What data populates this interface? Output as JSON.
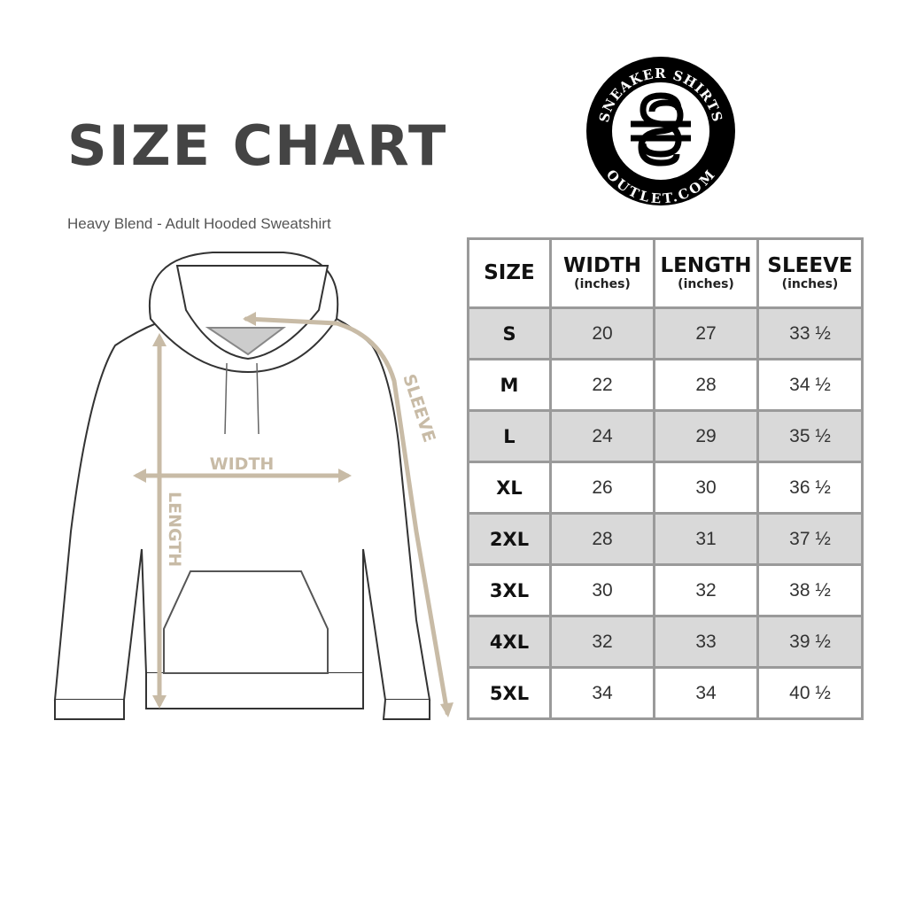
{
  "header": {
    "title": "SIZE CHART",
    "subtitle": "Heavy Blend - Adult Hooded Sweatshirt"
  },
  "logo": {
    "text_top": "SNEAKER SHIRTS",
    "text_bottom": "OUTLET.COM",
    "monogram": "SS"
  },
  "diagram": {
    "labels": {
      "width": "WIDTH",
      "length": "LENGTH",
      "sleeve": "SLEEVE"
    },
    "accent_color": "#c8bba6"
  },
  "table": {
    "headers": [
      {
        "label": "SIZE",
        "unit": ""
      },
      {
        "label": "WIDTH",
        "unit": "(inches)"
      },
      {
        "label": "LENGTH",
        "unit": "(inches)"
      },
      {
        "label": "SLEEVE",
        "unit": "(inches)"
      }
    ],
    "rows": [
      [
        "S",
        "20",
        "27",
        "33 ½"
      ],
      [
        "M",
        "22",
        "28",
        "34 ½"
      ],
      [
        "L",
        "24",
        "29",
        "35 ½"
      ],
      [
        "XL",
        "26",
        "30",
        "36 ½"
      ],
      [
        "2XL",
        "28",
        "31",
        "37 ½"
      ],
      [
        "3XL",
        "30",
        "32",
        "38 ½"
      ],
      [
        "4XL",
        "32",
        "33",
        "39 ½"
      ],
      [
        "5XL",
        "34",
        "34",
        "40 ½"
      ]
    ],
    "stripe_color": "#d9d9d9",
    "border_color": "#9a9a9a"
  }
}
